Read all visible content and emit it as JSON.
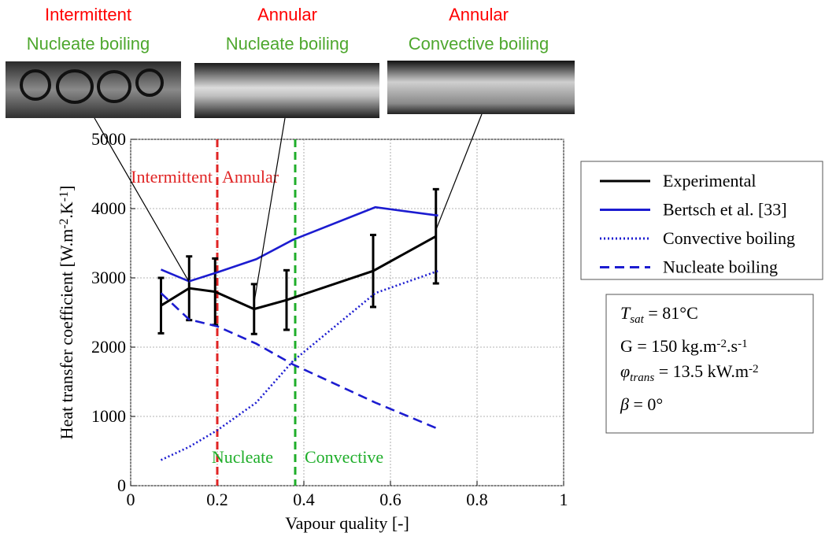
{
  "chart_data": {
    "type": "line",
    "xlabel": [
      {
        "text": "Vapour quality [-]",
        "style": "normal"
      }
    ],
    "ylabel": [
      {
        "text": "Heat transfer coefficient [W.m",
        "style": "normal"
      },
      {
        "text": "-2",
        "style": "sup"
      },
      {
        "text": ".K",
        "style": "normal"
      },
      {
        "text": "-1",
        "style": "sup"
      },
      {
        "text": "]",
        "style": "normal"
      }
    ],
    "xlim": [
      0,
      1
    ],
    "xticks": [
      0,
      0.2,
      0.4,
      0.6,
      0.8,
      1
    ],
    "ylim": [
      0,
      5000
    ],
    "yticks": [
      0,
      1000,
      2000,
      3000,
      4000,
      5000
    ],
    "grid": true,
    "legend": "outside-right",
    "series": [
      {
        "name": "Experimental",
        "color": "#000000",
        "dash": "solid",
        "x": [
          0.07,
          0.135,
          0.195,
          0.285,
          0.36,
          0.56,
          0.705
        ],
        "values": [
          2600,
          2850,
          2800,
          2550,
          2680,
          3100,
          3600
        ],
        "errors": [
          400,
          460,
          480,
          360,
          430,
          520,
          680
        ]
      },
      {
        "name": "Bertsch et al. [33]",
        "color": "#1c1cd0",
        "dash": "solid",
        "x": [
          0.07,
          0.135,
          0.2,
          0.29,
          0.375,
          0.565,
          0.71
        ],
        "values": [
          3120,
          2950,
          3080,
          3270,
          3550,
          4020,
          3900
        ]
      },
      {
        "name": "Convective boiling",
        "color": "#1c1cd0",
        "dash": "dotted",
        "x": [
          0.07,
          0.135,
          0.2,
          0.29,
          0.375,
          0.565,
          0.71
        ],
        "values": [
          370,
          560,
          800,
          1200,
          1800,
          2780,
          3100
        ]
      },
      {
        "name": "Nucleate boiling",
        "color": "#1c1cd0",
        "dash": "dashed",
        "x": [
          0.07,
          0.135,
          0.2,
          0.29,
          0.375,
          0.565,
          0.71
        ],
        "values": [
          2780,
          2400,
          2300,
          2050,
          1750,
          1200,
          820
        ]
      }
    ],
    "vlines": [
      {
        "x": 0.2,
        "color": "#e02424"
      },
      {
        "x": 0.38,
        "color": "#1fae2a"
      }
    ],
    "annotations": [
      {
        "text": "Intermittent",
        "color": "#e02424"
      },
      {
        "text": "Annular",
        "color": "#e02424"
      },
      {
        "text": "Nucleate",
        "color": "#1fae2a"
      },
      {
        "text": "Convective",
        "color": "#1fae2a"
      }
    ]
  },
  "photos": [
    {
      "title": "Intermittent",
      "subtitle": "Nucleate boiling",
      "title_color": "#ff0000",
      "subtitle_color": "#4ea72e"
    },
    {
      "title": "Annular",
      "subtitle": "Nucleate boiling",
      "title_color": "#ff0000",
      "subtitle_color": "#4ea72e"
    },
    {
      "title": "Annular",
      "subtitle": "Convective boiling",
      "title_color": "#ff0000",
      "subtitle_color": "#4ea72e"
    }
  ],
  "info_box": {
    "lines": [
      [
        {
          "text": "T",
          "style": "italic"
        },
        {
          "text": "sat",
          "style": "sub italic"
        },
        {
          "text": " = 81°C",
          "style": "normal"
        }
      ],
      [
        {
          "text": "G = 150 kg.m",
          "style": "normal"
        },
        {
          "text": "-2",
          "style": "sup"
        },
        {
          "text": ".s",
          "style": "normal"
        },
        {
          "text": "-1",
          "style": "sup"
        }
      ],
      [
        {
          "text": "φ",
          "style": "italic"
        },
        {
          "text": "trans",
          "style": "sub italic"
        },
        {
          "text": " = 13.5 kW.m",
          "style": "normal"
        },
        {
          "text": "-2",
          "style": "sup"
        }
      ],
      [
        {
          "text": "β",
          "style": "italic"
        },
        {
          "text": " = 0°",
          "style": "normal"
        }
      ]
    ]
  }
}
